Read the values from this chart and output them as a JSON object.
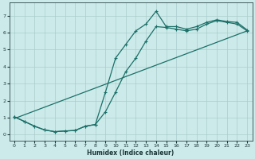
{
  "xlabel": "Humidex (Indice chaleur)",
  "background_color": "#cdeaea",
  "grid_color": "#aacccc",
  "line_color": "#1a7068",
  "xlim": [
    -0.5,
    23.5
  ],
  "ylim": [
    -0.35,
    7.75
  ],
  "xticks": [
    0,
    1,
    2,
    3,
    4,
    5,
    6,
    7,
    8,
    9,
    10,
    11,
    12,
    13,
    14,
    15,
    16,
    17,
    18,
    19,
    20,
    21,
    22,
    23
  ],
  "yticks": [
    0,
    1,
    2,
    3,
    4,
    5,
    6,
    7
  ],
  "curve1_x": [
    0,
    1,
    2,
    3,
    4,
    5,
    6,
    7,
    8,
    9,
    10,
    11,
    12,
    13,
    14,
    15,
    16,
    17,
    18,
    19,
    20,
    21,
    22,
    23
  ],
  "curve1_y": [
    1.05,
    0.78,
    0.5,
    0.28,
    0.18,
    0.22,
    0.25,
    0.5,
    0.6,
    2.5,
    4.5,
    5.3,
    6.1,
    6.5,
    7.25,
    6.35,
    6.35,
    6.2,
    6.35,
    6.6,
    6.75,
    6.65,
    6.6,
    6.15
  ],
  "curve2_x": [
    0,
    1,
    2,
    3,
    4,
    5,
    6,
    7,
    8,
    9,
    10,
    11,
    12,
    13,
    14,
    15,
    16,
    17,
    18,
    19,
    20,
    21,
    22,
    23
  ],
  "curve2_y": [
    1.05,
    0.78,
    0.5,
    0.28,
    0.18,
    0.22,
    0.25,
    0.5,
    0.6,
    1.35,
    2.5,
    3.7,
    4.5,
    5.5,
    6.35,
    6.3,
    6.2,
    6.1,
    6.2,
    6.5,
    6.7,
    6.6,
    6.5,
    6.1
  ],
  "line3_x": [
    0,
    23
  ],
  "line3_y": [
    0.95,
    6.1
  ]
}
